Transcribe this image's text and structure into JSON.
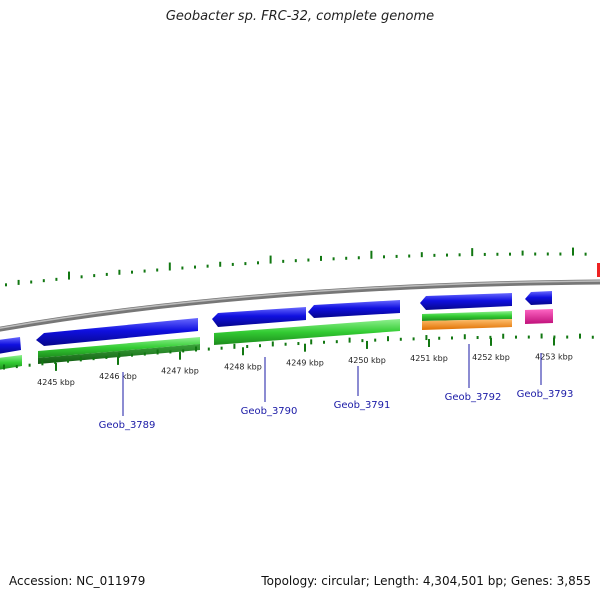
{
  "title": "Geobacter sp. FRC-32, complete genome",
  "footer": {
    "accession_label": "Accession:",
    "accession": "NC_011979",
    "topology_label": "Topology:",
    "topology": "circular",
    "length_label": "Length:",
    "length": "4,304,501 bp",
    "genes_label": "Genes:",
    "genes": "3,855"
  },
  "colors": {
    "forward_cds": "#1010dd",
    "cds_green": "#33cc33",
    "cds_dark_green": "#1a7a1a",
    "orange": "#ff9922",
    "pink": "#ee2299",
    "backbone": "#888888",
    "gc_tick": "#117711",
    "label_line": "#1a1aa6"
  },
  "scale_ticks": [
    {
      "label": "4245 kbp"
    },
    {
      "label": "4246 kbp"
    },
    {
      "label": "4247 kbp"
    },
    {
      "label": "4248 kbp"
    },
    {
      "label": "4249 kbp"
    },
    {
      "label": "4250 kbp"
    },
    {
      "label": "4251 kbp"
    },
    {
      "label": "4252 kbp"
    },
    {
      "label": "4253 kbp"
    }
  ],
  "gene_labels": [
    {
      "label": "Geob_3789"
    },
    {
      "label": "Geob_3790"
    },
    {
      "label": "Geob_3791"
    },
    {
      "label": "Geob_3792"
    },
    {
      "label": "Geob_3793"
    }
  ]
}
